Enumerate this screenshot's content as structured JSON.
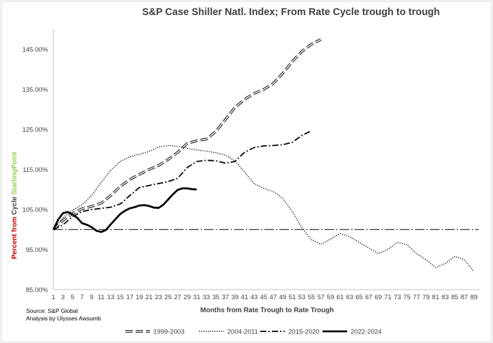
{
  "chart_data": {
    "type": "line",
    "title": "S&P Case Shiller Natl. Index; From Rate Cycle trough to trough",
    "xlabel": "Months from Rate Trough to Rate Trough",
    "ylabel_parts": [
      "Percent from ",
      "Cycle ",
      "Starting",
      "Point"
    ],
    "ylabel_colors": [
      "#c00000",
      "#404040",
      "#92d050",
      "#92d050"
    ],
    "source_lines": [
      "Source: S&P Global",
      "Analysis by Ulysses Awsumb"
    ],
    "xlim": [
      1,
      90
    ],
    "ylim": [
      85,
      150
    ],
    "x_ticks": [
      1,
      3,
      5,
      7,
      9,
      11,
      13,
      15,
      17,
      19,
      21,
      23,
      25,
      27,
      29,
      31,
      33,
      35,
      37,
      39,
      41,
      43,
      45,
      47,
      49,
      51,
      53,
      55,
      57,
      59,
      61,
      63,
      65,
      67,
      69,
      71,
      73,
      75,
      77,
      79,
      81,
      83,
      85,
      87,
      89
    ],
    "y_ticks": [
      85,
      95,
      105,
      115,
      125,
      135,
      145
    ],
    "y_tick_labels": [
      "85.00%",
      "95.00%",
      "105.00%",
      "115.00%",
      "125.00%",
      "135.00%",
      "145.00%"
    ],
    "reference_line": 100,
    "series": [
      {
        "name": "1999-2003",
        "style": "hollow-dash",
        "x": [
          1,
          3,
          5,
          7,
          9,
          11,
          13,
          15,
          17,
          19,
          21,
          23,
          25,
          27,
          29,
          31,
          33,
          35,
          37,
          39,
          41,
          43,
          45,
          47,
          49,
          51,
          53,
          55,
          57
        ],
        "values": [
          100,
          102.3,
          104,
          105.2,
          105.8,
          106.6,
          108.5,
          110.8,
          112.5,
          113.8,
          115,
          116,
          117.5,
          119.3,
          121.5,
          122.2,
          122.6,
          124.5,
          127.5,
          130.5,
          132.5,
          134,
          135,
          136.5,
          139,
          142,
          144.5,
          146.3,
          147.5
        ]
      },
      {
        "name": "2004-2011",
        "style": "dotted",
        "x": [
          1,
          3,
          5,
          7,
          9,
          11,
          13,
          15,
          17,
          19,
          21,
          23,
          25,
          27,
          29,
          31,
          33,
          35,
          37,
          39,
          41,
          43,
          45,
          47,
          49,
          51,
          53,
          55,
          57,
          59,
          61,
          63,
          65,
          67,
          69,
          71,
          73,
          75,
          77,
          79,
          81,
          83,
          85,
          87,
          89
        ],
        "values": [
          100,
          103,
          104.8,
          106.2,
          108.5,
          111.8,
          114.8,
          117,
          118.2,
          118.8,
          119.5,
          120.6,
          121,
          120.8,
          120.3,
          119.9,
          119.6,
          119.2,
          118.6,
          117.2,
          114.4,
          111.5,
          110.3,
          109.5,
          107.8,
          104.5,
          100.5,
          97.5,
          96.3,
          97.6,
          99,
          98.2,
          96.8,
          95.4,
          94,
          95,
          96.8,
          96.2,
          94,
          92.5,
          90.5,
          91.5,
          93.3,
          92.5,
          89.5
        ]
      },
      {
        "name": "2015-2020",
        "style": "dash-dot",
        "x": [
          1,
          3,
          5,
          7,
          9,
          11,
          13,
          15,
          17,
          19,
          21,
          23,
          25,
          27,
          29,
          31,
          33,
          35,
          37,
          39,
          41,
          43,
          45,
          47,
          49,
          51,
          53,
          55
        ],
        "values": [
          100,
          101.2,
          103.2,
          104.5,
          105,
          105.3,
          105.6,
          106.4,
          108.5,
          110.5,
          111,
          111.5,
          112,
          112.8,
          115.5,
          117,
          117.3,
          117.2,
          116.6,
          117,
          119.3,
          120.5,
          120.9,
          121,
          121.2,
          121.8,
          123.5,
          124.7
        ]
      },
      {
        "name": "2022-2024",
        "style": "solid-thick",
        "x": [
          1,
          2,
          3,
          4,
          5,
          6,
          7,
          8,
          9,
          10,
          11,
          12,
          13,
          14,
          15,
          16,
          17,
          18,
          19,
          20,
          21,
          22,
          23,
          24,
          25,
          26,
          27,
          28,
          29,
          30,
          31
        ],
        "values": [
          100,
          102.5,
          104.1,
          104.4,
          103.8,
          102.9,
          101.6,
          101.2,
          100.6,
          99.7,
          99.4,
          99.9,
          101.3,
          102.6,
          103.9,
          104.7,
          105.3,
          105.6,
          106,
          106.1,
          105.9,
          105.5,
          105.4,
          106.2,
          107.5,
          108.8,
          109.9,
          110.3,
          110.3,
          110.1,
          110
        ]
      }
    ]
  }
}
